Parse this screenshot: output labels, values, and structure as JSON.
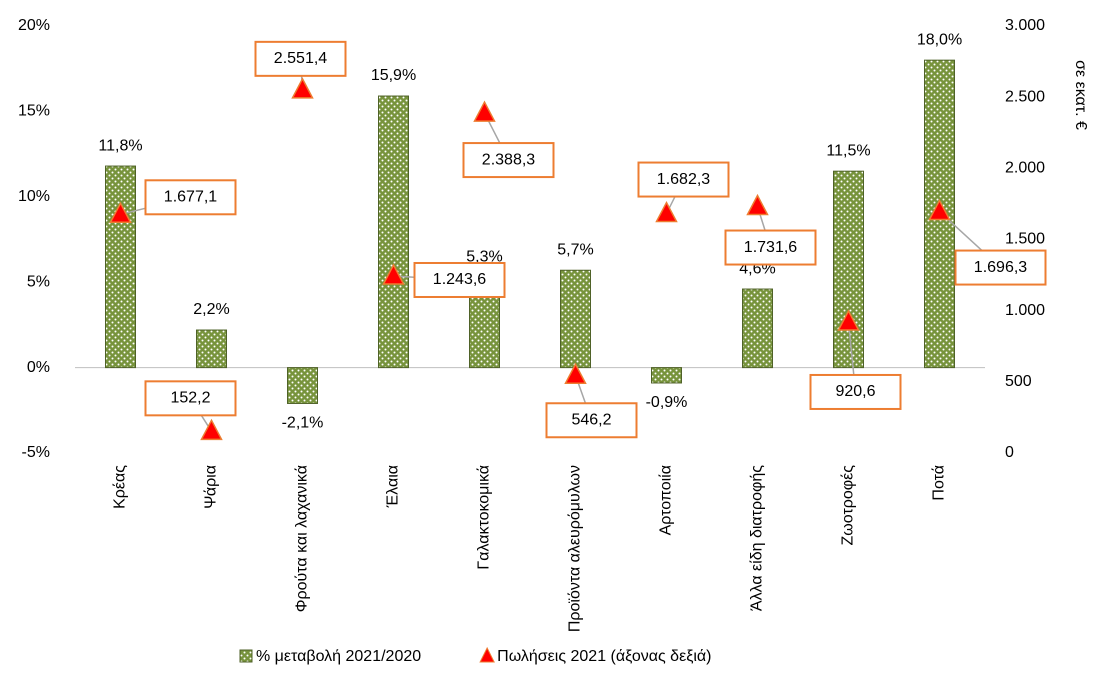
{
  "chart_data": {
    "type": "bar",
    "categories": [
      "Κρέας",
      "Ψάρια",
      "Φρούτα και λαχανικά",
      "Έλαια",
      "Γαλακτοκομικά",
      "Προϊόντα αλευρόμυλων",
      "Αρτοποιία",
      "Άλλα είδη διατροφής",
      "Ζωοτροφές",
      "Ποτά"
    ],
    "series": [
      {
        "name": "% μεταβολή 2021/2020",
        "color": "#77933c",
        "type": "bar",
        "values": [
          11.8,
          2.2,
          -2.1,
          15.9,
          5.3,
          5.7,
          -0.9,
          4.6,
          11.5,
          18.0
        ],
        "value_labels": [
          "11,8%",
          "2,2%",
          "-2,1%",
          "15,9%",
          "5,3%",
          "5,7%",
          "-0,9%",
          "4,6%",
          "11,5%",
          "18,0%"
        ]
      },
      {
        "name": "Πωλήσεις 2021 (άξονας δεξιά)",
        "color": "#ff0000",
        "type": "scatter",
        "axis": "y2",
        "values": [
          1677.1,
          152.2,
          2551.4,
          1243.6,
          2388.3,
          546.2,
          1682.3,
          1731.6,
          920.6,
          1696.3
        ],
        "value_labels": [
          "1.677,1",
          "152,2",
          "2.551,4",
          "1.243,6",
          "2.388,3",
          "546,2",
          "1.682,3",
          "1.731,6",
          "920,6",
          "1.696,3"
        ]
      }
    ],
    "y2label": "σε εκατ. €",
    "ylim": [
      -5,
      20
    ],
    "yticks": [
      {
        "value": -5,
        "label": "-5%"
      },
      {
        "value": 0,
        "label": "0%"
      },
      {
        "value": 5,
        "label": "5%"
      },
      {
        "value": 10,
        "label": "10%"
      },
      {
        "value": 15,
        "label": "15%"
      },
      {
        "value": 20,
        "label": "20%"
      }
    ],
    "y2lim": [
      0,
      3000
    ],
    "y2ticks": [
      0,
      500,
      {
        "value": 1000,
        "label": "1.000"
      },
      {
        "value": 1500,
        "label": "1.500"
      },
      {
        "value": 2000,
        "label": "2.000"
      },
      {
        "value": 2500,
        "label": "2.500"
      },
      {
        "value": 3000,
        "label": "3.000"
      }
    ],
    "legend": "bottom"
  }
}
